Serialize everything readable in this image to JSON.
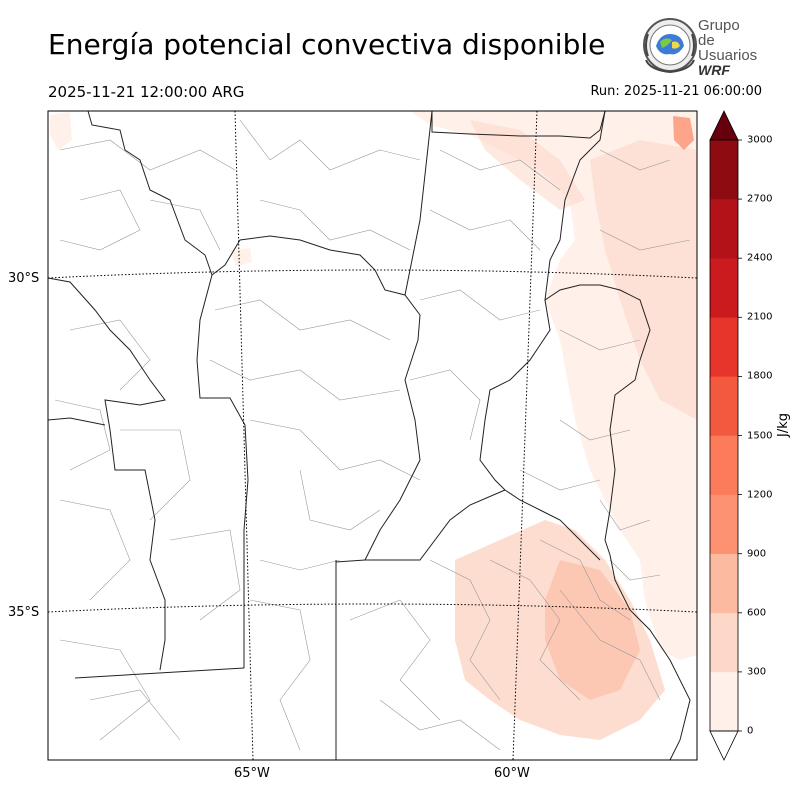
{
  "title": "Energía potencial convectiva disponible",
  "valid_time": "2025-11-21 12:00:00 ARG",
  "run_time": "Run: 2025-11-21 06:00:00",
  "logo": {
    "line1": "Grupo de",
    "line2": "Usuarios",
    "line3": "WRF"
  },
  "map": {
    "lat_labels": [
      "30°S",
      "35°S"
    ],
    "lon_labels": [
      "65°W",
      "60°W"
    ],
    "gridline_style": "dotted"
  },
  "colorbar": {
    "unit": "J/kg",
    "ticks": [
      "0",
      "300",
      "600",
      "900",
      "1200",
      "1500",
      "1800",
      "2100",
      "2400",
      "2700",
      "3000"
    ],
    "levels": [
      0,
      300,
      600,
      900,
      1200,
      1500,
      1800,
      2100,
      2400,
      2700,
      3000
    ],
    "colors": [
      "#fff0ea",
      "#fdd7c8",
      "#fcbba1",
      "#fc9272",
      "#fb7b5b",
      "#f3593f",
      "#e8352b",
      "#cc1b1e",
      "#b21218",
      "#8e0b12"
    ],
    "over_color": "#67000d",
    "under_color": "#ffffff",
    "extend": "both"
  },
  "colors": {
    "shading_low": "#fff0ea",
    "shading_mid": "#fdd7c8",
    "shading_high": "#fc9272",
    "province_border": "#222222",
    "department_border": "#999999"
  }
}
